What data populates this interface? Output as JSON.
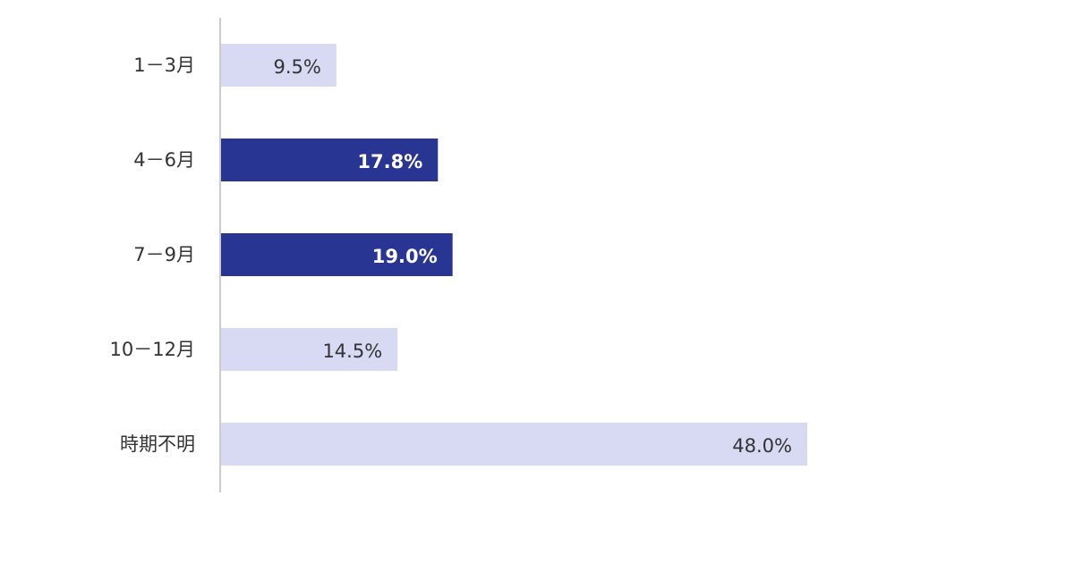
{
  "chart_data": {
    "type": "bar",
    "orientation": "horizontal",
    "categories": [
      "1－3月",
      "4－6月",
      "7－9月",
      "10－12月",
      "時期不明"
    ],
    "values": [
      9.5,
      17.8,
      19.0,
      14.5,
      48.0
    ],
    "value_labels": [
      "9.5%",
      "17.8%",
      "19.0%",
      "14.5%",
      "48.0%"
    ],
    "highlighted": [
      false,
      true,
      true,
      false,
      false
    ],
    "xlim": [
      0,
      60
    ],
    "grid": false,
    "legend": "none",
    "title": "",
    "xlabel": "",
    "ylabel": ""
  },
  "colors": {
    "bar_default": "#d8d9f2",
    "bar_highlight": "#283593",
    "axis_line": "#cccccc",
    "label_text": "#333333",
    "highlight_text": "#ffffff"
  }
}
